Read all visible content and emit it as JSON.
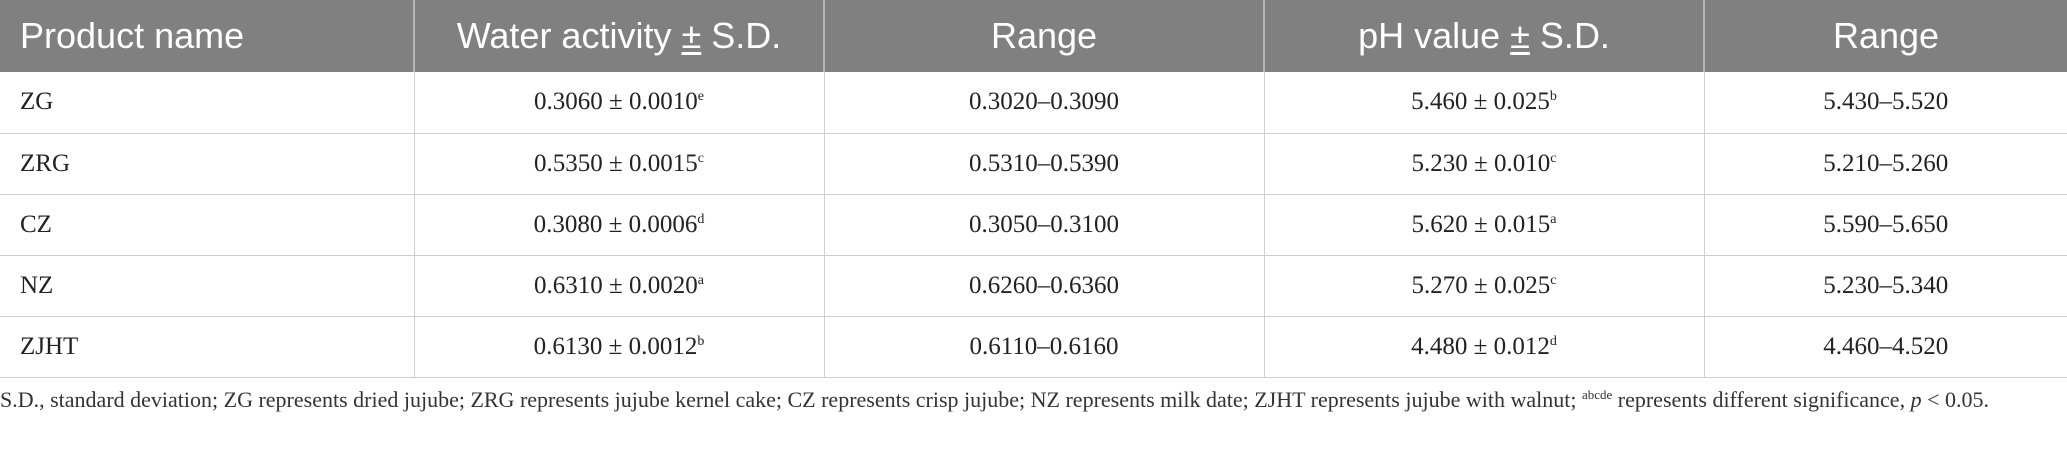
{
  "table": {
    "headers": [
      "Product name",
      "Water activity ",
      "±",
      " S.D.",
      "Range",
      "pH value ",
      "±",
      " S.D.",
      "Range"
    ],
    "rows": [
      {
        "name": "ZG",
        "aw": "0.3060 ± 0.0010",
        "aw_sup": "e",
        "aw_range": "0.3020–0.3090",
        "ph": "5.460 ± 0.025",
        "ph_sup": "b",
        "ph_range": "5.430–5.520"
      },
      {
        "name": "ZRG",
        "aw": "0.5350 ± 0.0015",
        "aw_sup": "c",
        "aw_range": "0.5310–0.5390",
        "ph": "5.230 ± 0.010",
        "ph_sup": "c",
        "ph_range": "5.210–5.260"
      },
      {
        "name": "CZ",
        "aw": "0.3080 ± 0.0006",
        "aw_sup": "d",
        "aw_range": "0.3050–0.3100",
        "ph": "5.620 ± 0.015",
        "ph_sup": "a",
        "ph_range": "5.590–5.650"
      },
      {
        "name": "NZ",
        "aw": "0.6310 ± 0.0020",
        "aw_sup": "a",
        "aw_range": "0.6260–0.6360",
        "ph": "5.270 ± 0.025",
        "ph_sup": "c",
        "ph_range": "5.230–5.340"
      },
      {
        "name": "ZJHT",
        "aw": "0.6130 ± 0.0012",
        "aw_sup": "b",
        "aw_range": "0.6110–0.6160",
        "ph": "4.480 ± 0.012",
        "ph_sup": "d",
        "ph_range": "4.460–4.520"
      }
    ]
  },
  "footnote": {
    "part1": "S.D., standard deviation; ZG represents dried jujube; ZRG represents jujube kernel cake; CZ represents crisp jujube; NZ represents milk date; ZJHT represents jujube with walnut; ",
    "sup": "abcde",
    "part2": " represents different significance, ",
    "p": "p",
    "part3": " < 0.05."
  }
}
